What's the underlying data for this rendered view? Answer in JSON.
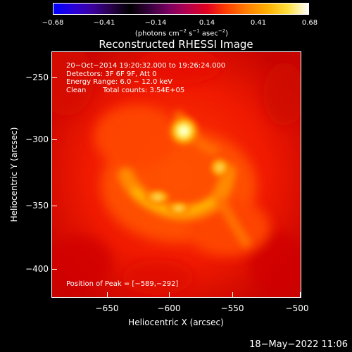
{
  "colorbar": {
    "ticks": [
      "−0.68",
      "−0.41",
      "−0.14",
      "0.14",
      "0.41",
      "0.68"
    ],
    "unit_prefix": "(photons cm",
    "unit_exp1": "−2",
    "unit_mid": " s",
    "unit_exp2": "−1",
    "unit_mid2": " asec",
    "unit_exp3": "−2",
    "unit_suffix": ")"
  },
  "title": "Reconstructed RHESSI Image",
  "info": {
    "time_range": "20−Oct−2014 19:20:32.000 to 19:26:24.000",
    "detectors": "Detectors: 3F 6F 9F, Att 0",
    "energy": "Energy Range: 6.0 − 12.0 keV",
    "method": "Clean",
    "counts": "Total counts: 3.54E+05",
    "peak": "Position of Peak = [−589,−292]"
  },
  "axes": {
    "xlabel": "Heliocentric X (arcsec)",
    "ylabel": "Heliocentric Y (arcsec)",
    "xticks": [
      "−650",
      "−600",
      "−550",
      "−500"
    ],
    "yticks": [
      "−250",
      "−300",
      "−350",
      "−400"
    ]
  },
  "footer": {
    "date": "18−May−2022 11:06"
  }
}
